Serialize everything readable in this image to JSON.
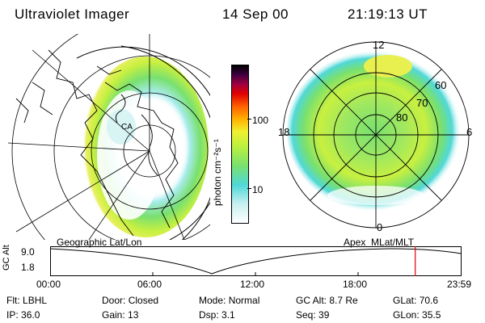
{
  "header": {
    "instrument": "Ultraviolet Imager",
    "date": "14 Sep 00",
    "time": "21:19:13 UT"
  },
  "colorbar": {
    "units_label": "photon cm⁻²s⁻¹",
    "ticks": [
      "100",
      "10"
    ],
    "scale": "log",
    "colors": [
      "#ffffff",
      "#c8f0f0",
      "#50d8d8",
      "#78e070",
      "#b8f040",
      "#f0f030",
      "#ffb000",
      "#ff6000",
      "#e00000",
      "#a00040",
      "#400040",
      "#000000"
    ]
  },
  "left_map": {
    "label": "Geographic Lat/Lon",
    "region_label": "CA"
  },
  "right_map": {
    "label": "Apex  MLat/MLT",
    "mlt_labels": {
      "top": "12",
      "left": "18",
      "right": "6",
      "bottom": "0"
    },
    "lat_labels": [
      "60",
      "70",
      "80"
    ]
  },
  "timeline": {
    "ylabel": "GC Alt",
    "ymax": "9.0",
    "ymin": "1.8",
    "ticks": [
      "00:00",
      "06:00",
      "12:00",
      "18:00",
      "23:59"
    ],
    "current_marker_fraction": 0.889
  },
  "info": {
    "row1": [
      {
        "label": "Flt:",
        "value": "LBHL"
      },
      {
        "label": "Door:",
        "value": "Closed"
      },
      {
        "label": "Mode:",
        "value": "Normal"
      },
      {
        "label": "GC Alt:",
        "value": "8.7 Re"
      },
      {
        "label": "GLat:",
        "value": "70.6"
      }
    ],
    "row2": [
      {
        "label": "IP:",
        "value": "36.0"
      },
      {
        "label": "Gain:",
        "value": "13"
      },
      {
        "label": "Dsp:",
        "value": "3.1"
      },
      {
        "label": "Seq:",
        "value": "39"
      },
      {
        "label": "GLon:",
        "value": "35.5"
      }
    ]
  }
}
